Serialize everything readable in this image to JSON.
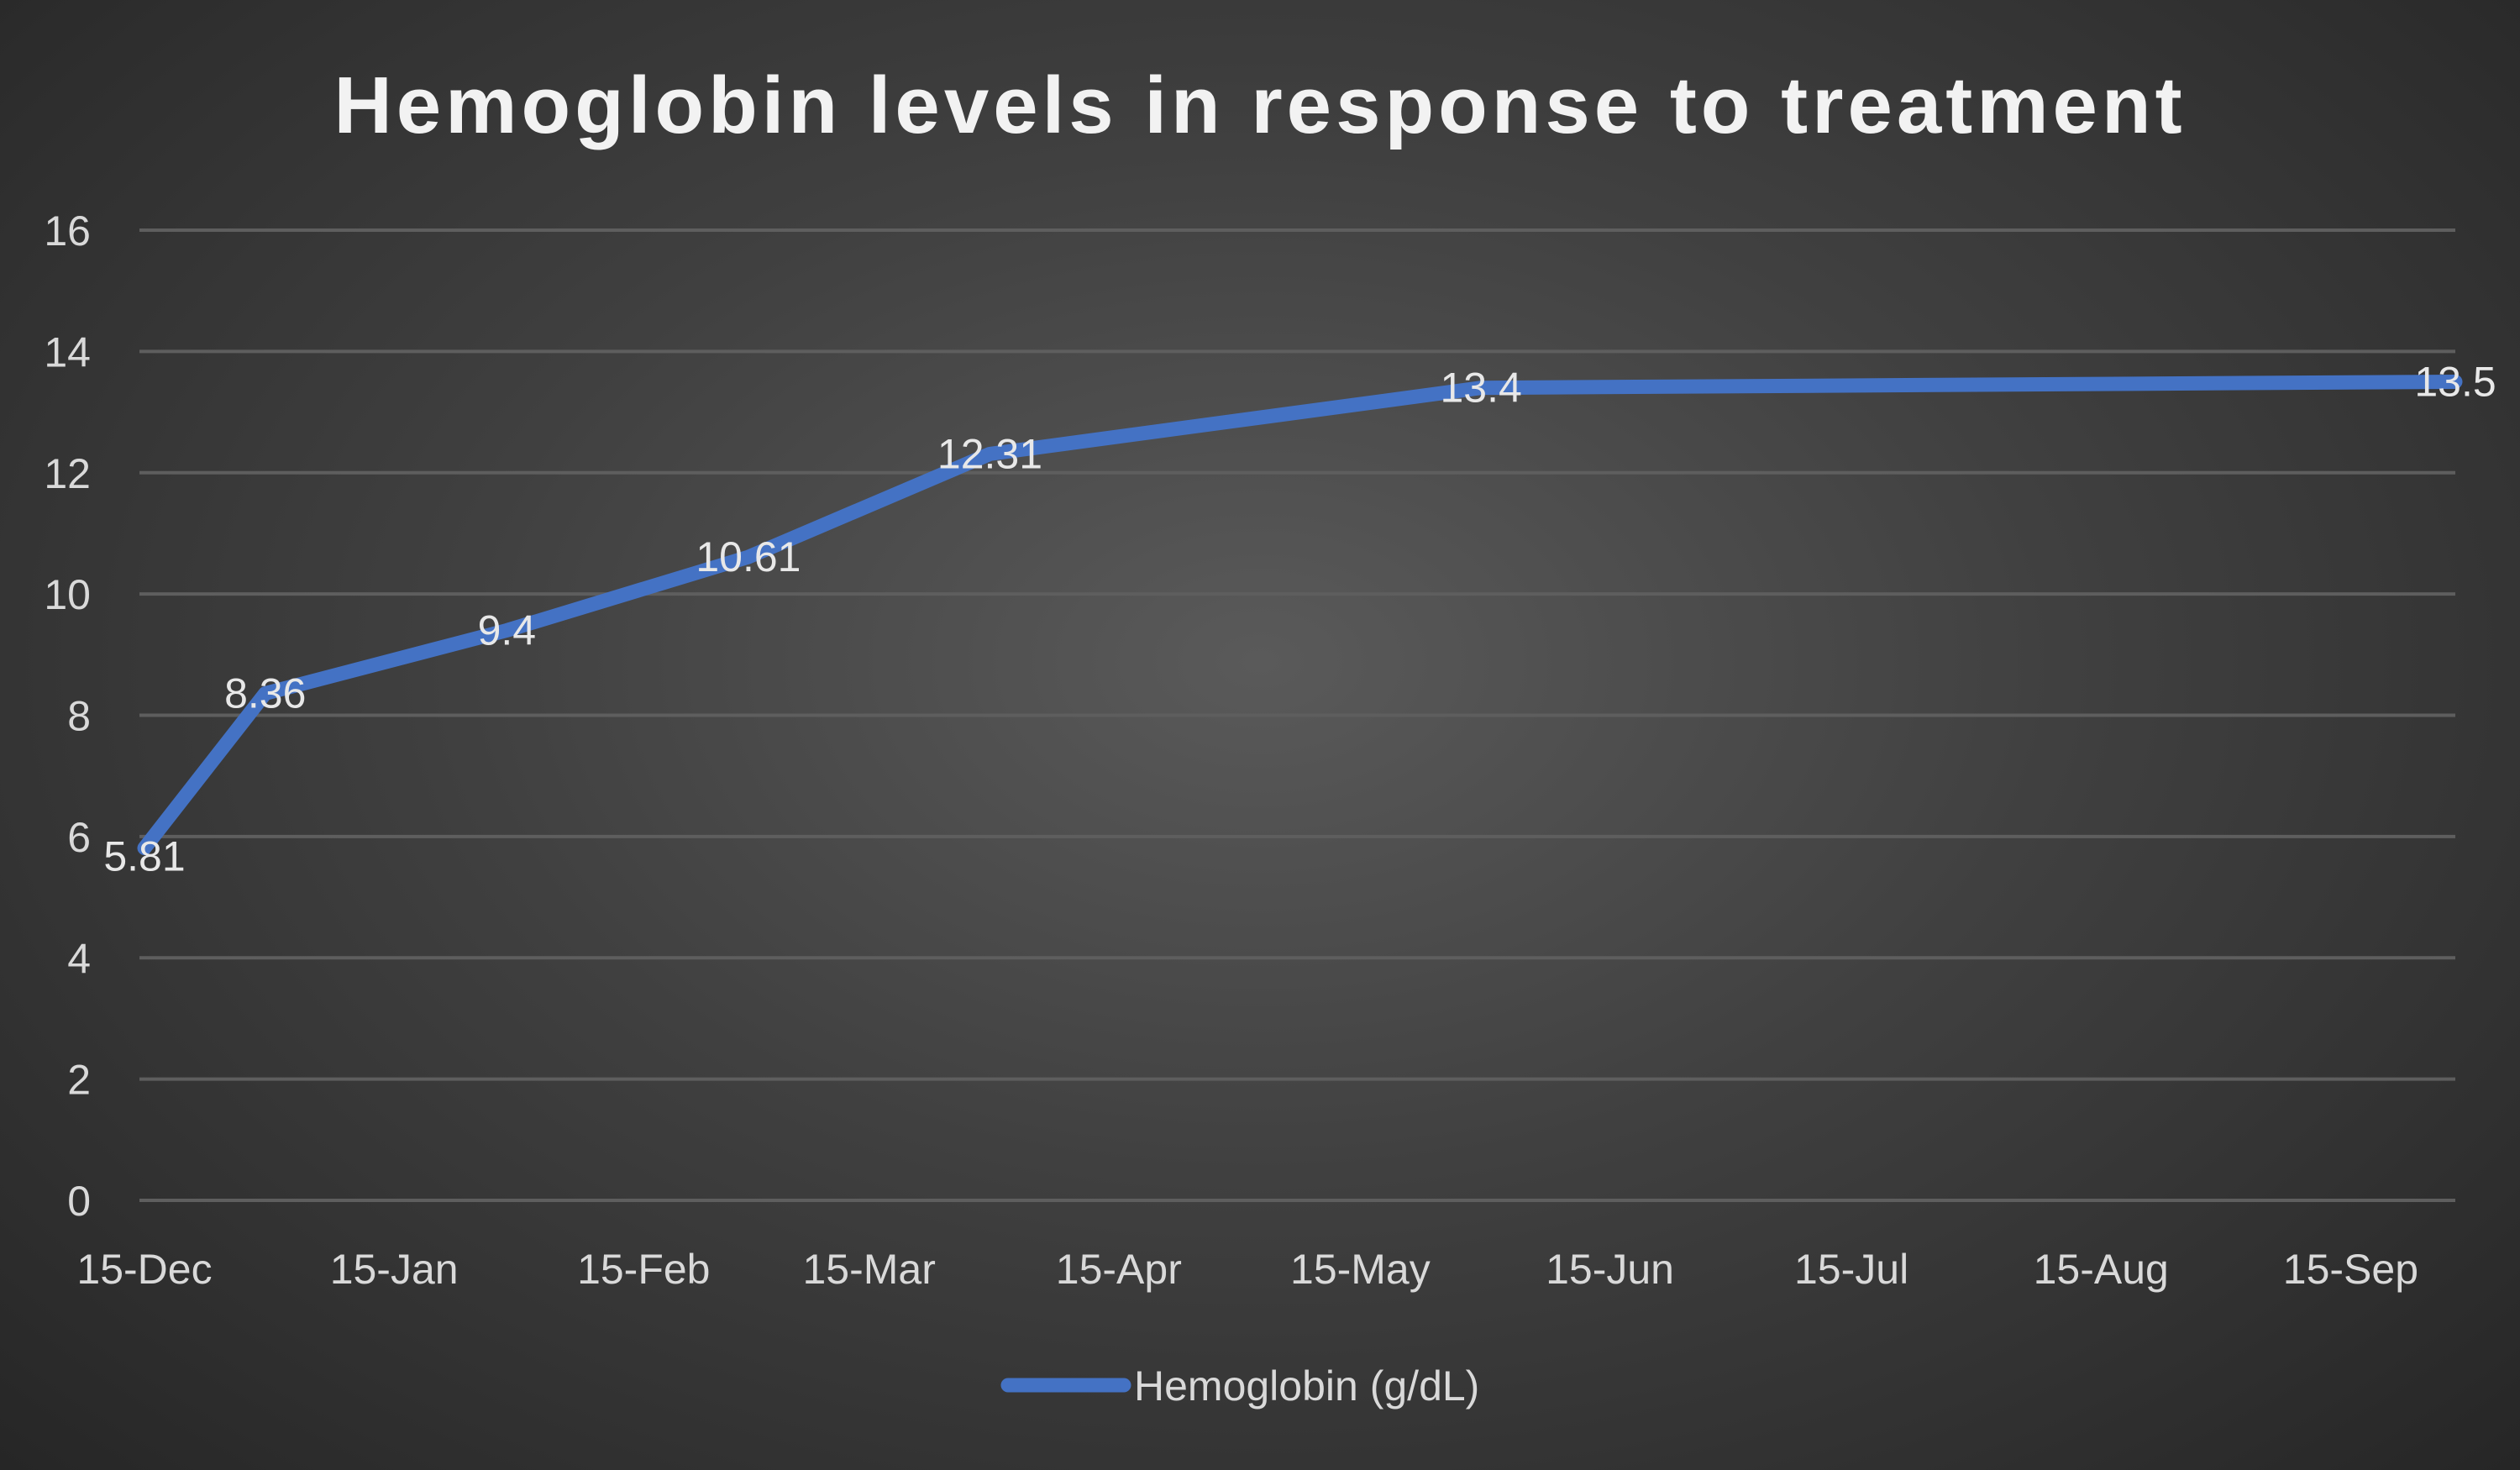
{
  "chart_data": {
    "type": "line",
    "title": "Hemoglobin levels in response to treatment",
    "xlabel": "",
    "ylabel": "",
    "x": [
      "15-Dec",
      "30-Dec",
      "29-Jan",
      "28-Feb",
      "30-Mar",
      "30-May",
      "28-Sep"
    ],
    "series": [
      {
        "name": "Hemoglobin (g/dL)",
        "values": [
          5.81,
          8.36,
          9.4,
          10.61,
          12.31,
          13.4,
          13.5
        ],
        "color": "#4472C4"
      }
    ],
    "data_labels": [
      "5.81",
      "8.36",
      "9.4",
      "10.61",
      "12.31",
      "13.4",
      "13.5"
    ],
    "ylim": [
      0,
      16
    ],
    "yticks": [
      "0",
      "2",
      "4",
      "6",
      "8",
      "10",
      "12",
      "14",
      "16"
    ],
    "xlim": [
      "15-Dec",
      "28-Sep"
    ],
    "xticks": [
      "15-Dec",
      "15-Jan",
      "15-Feb",
      "15-Mar",
      "15-Apr",
      "15-May",
      "15-Jun",
      "15-Jul",
      "15-Aug",
      "15-Sep"
    ],
    "grid": true,
    "legend": "bottom"
  }
}
